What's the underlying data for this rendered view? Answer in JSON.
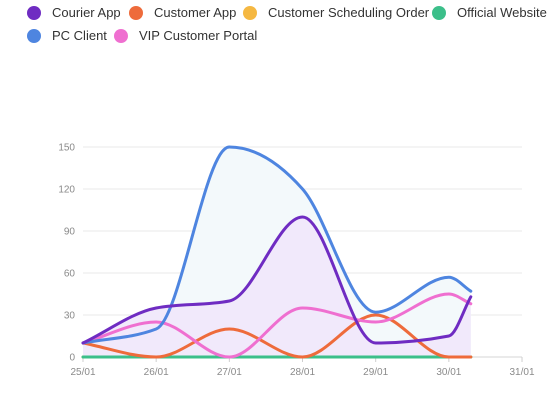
{
  "chart_data": {
    "type": "area",
    "x": [
      "25/01",
      "26/01",
      "27/01",
      "28/01",
      "29/01",
      "30/01",
      "31/01"
    ],
    "y_ticks": [
      0,
      30,
      60,
      90,
      120,
      150
    ],
    "ylim": [
      0,
      150
    ],
    "grid": true,
    "legend_position": "top-left",
    "series": [
      {
        "name": "Courier App",
        "color": "#6f2cc2",
        "fill": false,
        "points": [
          [
            0,
            10
          ],
          [
            1,
            35
          ],
          [
            2,
            40
          ],
          [
            3,
            100
          ],
          [
            4,
            10
          ],
          [
            5,
            15
          ],
          [
            5.3,
            43
          ]
        ]
      },
      {
        "name": "Customer App",
        "color": "#ee6b3b",
        "fill": false,
        "points": [
          [
            0,
            10
          ],
          [
            1,
            0
          ],
          [
            2,
            20
          ],
          [
            3,
            0
          ],
          [
            4,
            30
          ],
          [
            5,
            0
          ],
          [
            5.3,
            0
          ]
        ]
      },
      {
        "name": "Customer Scheduling Order",
        "color": "#f5b842",
        "fill": false,
        "points": [
          [
            0,
            0
          ],
          [
            1,
            0
          ],
          [
            2,
            0
          ],
          [
            3,
            0
          ],
          [
            4,
            0
          ],
          [
            5,
            0
          ],
          [
            5.3,
            0
          ]
        ]
      },
      {
        "name": "Official Website",
        "color": "#3cbf8a",
        "fill": false,
        "points": [
          [
            0,
            0
          ],
          [
            1,
            0
          ],
          [
            2,
            0
          ],
          [
            3,
            0
          ],
          [
            4,
            0
          ],
          [
            5,
            0
          ],
          [
            5.3,
            0
          ]
        ]
      },
      {
        "name": "PC Client",
        "color": "#4e85e0",
        "fill": true,
        "points": [
          [
            0,
            10
          ],
          [
            1,
            20
          ],
          [
            2,
            150
          ],
          [
            3,
            120
          ],
          [
            4,
            32
          ],
          [
            5,
            57
          ],
          [
            5.3,
            47
          ]
        ]
      },
      {
        "name": "VIP Customer Portal",
        "color": "#ef6fd0",
        "fill": false,
        "points": [
          [
            0,
            10
          ],
          [
            1,
            25
          ],
          [
            2,
            0
          ],
          [
            3,
            35
          ],
          [
            4,
            25
          ],
          [
            5,
            45
          ],
          [
            5.3,
            38
          ]
        ]
      }
    ],
    "area_fills": {
      "PC Client": "#f3f9fb",
      "Courier App": "#f1e9fb"
    }
  }
}
